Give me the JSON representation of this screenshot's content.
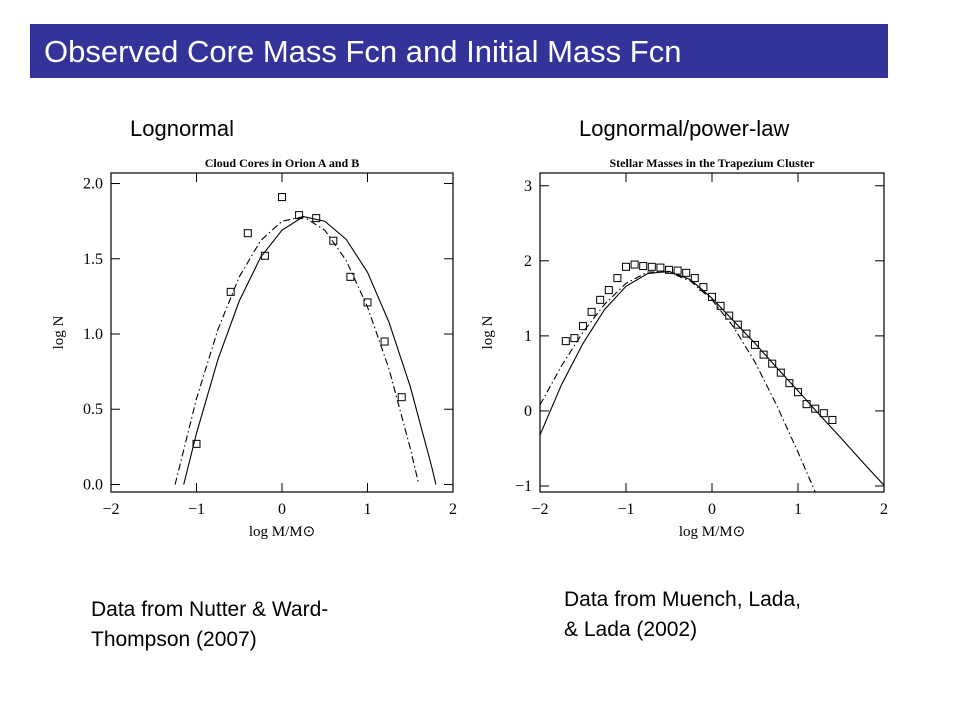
{
  "title": "Observed Core Mass Fcn and Initial Mass Fcn",
  "panels": [
    {
      "heading": "Lognormal",
      "caption": [
        "Data from Nutter & Ward-",
        "Thompson (2007)"
      ]
    },
    {
      "heading": "Lognormal/power-law",
      "caption": [
        "Data from Muench, Lada,",
        "& Lada (2002)"
      ]
    }
  ],
  "chart_data": [
    {
      "type": "scatter",
      "title": "Cloud Cores in Orion A and B",
      "xlabel": "log M/M⊙",
      "ylabel": "log N",
      "xlim": [
        -2,
        2
      ],
      "ylim": [
        -0.05,
        2.07
      ],
      "xticks": [
        {
          "value": -2,
          "label": "−2"
        },
        {
          "value": -1,
          "label": "−1"
        },
        0,
        1,
        2
      ],
      "yticks": [
        {
          "value": 0,
          "label": "0.0"
        },
        {
          "value": 0.5,
          "label": "0.5"
        },
        {
          "value": 1,
          "label": "1.0"
        },
        {
          "value": 1.5,
          "label": "1.5"
        },
        {
          "value": 2,
          "label": "2.0"
        }
      ],
      "points": {
        "x": [
          -1.0,
          -0.6,
          -0.4,
          -0.2,
          0.0,
          0.2,
          0.4,
          0.6,
          0.8,
          1.0,
          1.2,
          1.4
        ],
        "y": [
          0.27,
          1.28,
          1.67,
          1.52,
          1.91,
          1.79,
          1.77,
          1.62,
          1.38,
          1.21,
          0.95,
          0.58
        ]
      },
      "lines": [
        {
          "style": "solid",
          "x": [
            -1.15,
            -1.0,
            -0.75,
            -0.5,
            -0.25,
            0,
            0.25,
            0.5,
            0.75,
            1.0,
            1.25,
            1.5,
            1.75,
            1.8
          ],
          "y": [
            0,
            0.34,
            0.83,
            1.22,
            1.51,
            1.69,
            1.78,
            1.75,
            1.63,
            1.41,
            1.08,
            0.65,
            0.12,
            0
          ]
        },
        {
          "style": "dashdot",
          "x": [
            -1.25,
            -1.0,
            -0.75,
            -0.5,
            -0.25,
            0,
            0.25,
            0.5,
            0.75,
            1.0,
            1.25,
            1.5,
            1.6
          ],
          "y": [
            0,
            0.57,
            1.03,
            1.38,
            1.62,
            1.75,
            1.78,
            1.69,
            1.49,
            1.18,
            0.77,
            0.24,
            0
          ]
        }
      ]
    },
    {
      "type": "scatter",
      "title": "Stellar Masses in the Trapezium Cluster",
      "xlabel": "log M/M⊙",
      "ylabel": "log N",
      "xlim": [
        -2,
        2
      ],
      "ylim": [
        -1.08,
        3.17
      ],
      "xticks": [
        {
          "value": -2,
          "label": "−2"
        },
        {
          "value": -1,
          "label": "−1"
        },
        0,
        1,
        2
      ],
      "yticks": [
        {
          "value": -1,
          "label": "−1"
        },
        0,
        1,
        2,
        3
      ],
      "points": {
        "x": [
          -1.7,
          -1.6,
          -1.5,
          -1.4,
          -1.3,
          -1.2,
          -1.1,
          -1.0,
          -0.9,
          -0.8,
          -0.7,
          -0.6,
          -0.5,
          -0.4,
          -0.3,
          -0.2,
          -0.1,
          0.0,
          0.1,
          0.2,
          0.3,
          0.4,
          0.5,
          0.6,
          0.7,
          0.8,
          0.9,
          1.0,
          1.1,
          1.2,
          1.3,
          1.4
        ],
        "y": [
          0.93,
          0.97,
          1.13,
          1.32,
          1.48,
          1.61,
          1.77,
          1.92,
          1.95,
          1.93,
          1.92,
          1.91,
          1.88,
          1.87,
          1.84,
          1.77,
          1.65,
          1.52,
          1.4,
          1.27,
          1.15,
          1.03,
          0.88,
          0.75,
          0.63,
          0.51,
          0.37,
          0.25,
          0.09,
          0.03,
          -0.03,
          -0.12
        ]
      },
      "lines": [
        {
          "style": "solid",
          "x": [
            -2,
            -1.75,
            -1.5,
            -1.25,
            -1.0,
            -0.75,
            -0.5,
            -0.25,
            0,
            0.25,
            0.5,
            0.75,
            1.0,
            1.25,
            1.5,
            1.75,
            2.0
          ],
          "y": [
            -0.32,
            0.35,
            0.9,
            1.35,
            1.66,
            1.83,
            1.86,
            1.75,
            1.5,
            1.2,
            0.9,
            0.58,
            0.27,
            -0.05,
            -0.36,
            -0.68,
            -0.99
          ]
        },
        {
          "style": "dashdot",
          "x": [
            -2,
            -1.75,
            -1.5,
            -1.25,
            -1.0,
            -0.75,
            -0.5,
            -0.25,
            0,
            0.25,
            0.5,
            0.75,
            1.0,
            1.2
          ],
          "y": [
            0.08,
            0.6,
            1.05,
            1.42,
            1.7,
            1.85,
            1.85,
            1.73,
            1.48,
            1.12,
            0.65,
            0.08,
            -0.55,
            -1.08
          ]
        }
      ]
    }
  ]
}
